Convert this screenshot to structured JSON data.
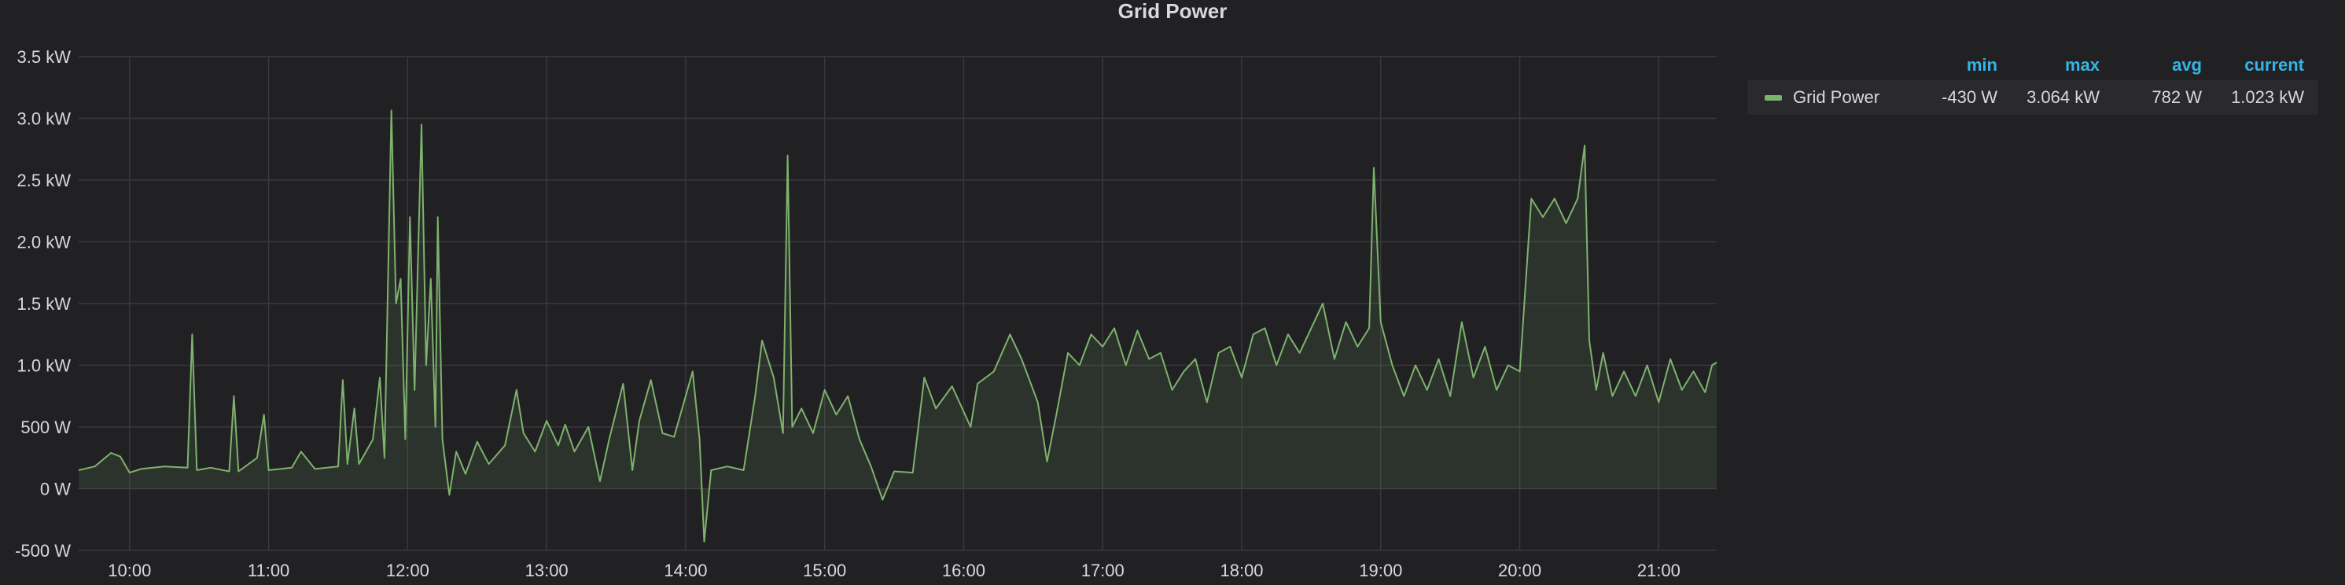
{
  "panel": {
    "title": "Grid Power"
  },
  "legend": {
    "headers": {
      "min": "min",
      "max": "max",
      "avg": "avg",
      "current": "current"
    },
    "series": [
      {
        "name": "Grid Power",
        "color": "#7eb26d",
        "min": "-430 W",
        "max": "3.064 kW",
        "avg": "782 W",
        "current": "1.023 kW"
      }
    ]
  },
  "chart_data": {
    "type": "area",
    "title": "Grid Power",
    "xlabel": "",
    "ylabel": "",
    "x_range": [
      "09:38",
      "21:25"
    ],
    "ylim": [
      -500,
      3500
    ],
    "y_ticks": [
      {
        "value": -500,
        "label": "-500 W"
      },
      {
        "value": 0,
        "label": "0 W"
      },
      {
        "value": 500,
        "label": "500 W"
      },
      {
        "value": 1000,
        "label": "1.0 kW"
      },
      {
        "value": 1500,
        "label": "1.5 kW"
      },
      {
        "value": 2000,
        "label": "2.0 kW"
      },
      {
        "value": 2500,
        "label": "2.5 kW"
      },
      {
        "value": 3000,
        "label": "3.0 kW"
      },
      {
        "value": 3500,
        "label": "3.5 kW"
      }
    ],
    "x_ticks": [
      "10:00",
      "11:00",
      "12:00",
      "13:00",
      "14:00",
      "15:00",
      "16:00",
      "17:00",
      "18:00",
      "19:00",
      "20:00",
      "21:00"
    ],
    "grid": true,
    "legend_position": "right",
    "series": [
      {
        "name": "Grid Power",
        "color": "#7eb26d",
        "points": [
          [
            "09:38",
            150
          ],
          [
            "09:45",
            180
          ],
          [
            "09:52",
            290
          ],
          [
            "09:56",
            260
          ],
          [
            "10:00",
            130
          ],
          [
            "10:05",
            160
          ],
          [
            "10:15",
            180
          ],
          [
            "10:25",
            170
          ],
          [
            "10:27",
            1250
          ],
          [
            "10:29",
            150
          ],
          [
            "10:35",
            170
          ],
          [
            "10:43",
            140
          ],
          [
            "10:45",
            750
          ],
          [
            "10:47",
            140
          ],
          [
            "10:55",
            250
          ],
          [
            "10:58",
            600
          ],
          [
            "11:00",
            150
          ],
          [
            "11:10",
            170
          ],
          [
            "11:14",
            300
          ],
          [
            "11:20",
            160
          ],
          [
            "11:30",
            180
          ],
          [
            "11:32",
            880
          ],
          [
            "11:34",
            200
          ],
          [
            "11:37",
            650
          ],
          [
            "11:39",
            200
          ],
          [
            "11:45",
            400
          ],
          [
            "11:48",
            900
          ],
          [
            "11:50",
            250
          ],
          [
            "11:53",
            3064
          ],
          [
            "11:55",
            1500
          ],
          [
            "11:57",
            1700
          ],
          [
            "11:59",
            400
          ],
          [
            "12:01",
            2200
          ],
          [
            "12:03",
            800
          ],
          [
            "12:06",
            2950
          ],
          [
            "12:08",
            1000
          ],
          [
            "12:10",
            1700
          ],
          [
            "12:12",
            500
          ],
          [
            "12:13",
            2200
          ],
          [
            "12:15",
            400
          ],
          [
            "12:18",
            -50
          ],
          [
            "12:21",
            300
          ],
          [
            "12:25",
            120
          ],
          [
            "12:30",
            380
          ],
          [
            "12:35",
            200
          ],
          [
            "12:42",
            350
          ],
          [
            "12:47",
            800
          ],
          [
            "12:50",
            450
          ],
          [
            "12:55",
            300
          ],
          [
            "13:00",
            550
          ],
          [
            "13:05",
            350
          ],
          [
            "13:08",
            520
          ],
          [
            "13:12",
            300
          ],
          [
            "13:18",
            500
          ],
          [
            "13:23",
            60
          ],
          [
            "13:27",
            400
          ],
          [
            "13:33",
            850
          ],
          [
            "13:37",
            150
          ],
          [
            "13:40",
            550
          ],
          [
            "13:45",
            880
          ],
          [
            "13:50",
            450
          ],
          [
            "13:55",
            420
          ],
          [
            "14:00",
            750
          ],
          [
            "14:03",
            950
          ],
          [
            "14:06",
            400
          ],
          [
            "14:08",
            -430
          ],
          [
            "14:11",
            150
          ],
          [
            "14:18",
            180
          ],
          [
            "14:25",
            150
          ],
          [
            "14:30",
            750
          ],
          [
            "14:33",
            1200
          ],
          [
            "14:38",
            900
          ],
          [
            "14:42",
            450
          ],
          [
            "14:44",
            2700
          ],
          [
            "14:46",
            500
          ],
          [
            "14:50",
            650
          ],
          [
            "14:55",
            450
          ],
          [
            "15:00",
            800
          ],
          [
            "15:05",
            600
          ],
          [
            "15:10",
            750
          ],
          [
            "15:15",
            400
          ],
          [
            "15:20",
            180
          ],
          [
            "15:25",
            -90
          ],
          [
            "15:30",
            140
          ],
          [
            "15:38",
            130
          ],
          [
            "15:43",
            900
          ],
          [
            "15:48",
            650
          ],
          [
            "15:55",
            830
          ],
          [
            "16:03",
            500
          ],
          [
            "16:06",
            850
          ],
          [
            "16:13",
            950
          ],
          [
            "16:20",
            1250
          ],
          [
            "16:25",
            1050
          ],
          [
            "16:32",
            700
          ],
          [
            "16:36",
            220
          ],
          [
            "16:40",
            600
          ],
          [
            "16:45",
            1100
          ],
          [
            "16:50",
            1000
          ],
          [
            "16:55",
            1250
          ],
          [
            "17:00",
            1150
          ],
          [
            "17:05",
            1300
          ],
          [
            "17:10",
            1000
          ],
          [
            "17:15",
            1280
          ],
          [
            "17:20",
            1050
          ],
          [
            "17:25",
            1100
          ],
          [
            "17:30",
            800
          ],
          [
            "17:35",
            950
          ],
          [
            "17:40",
            1050
          ],
          [
            "17:45",
            700
          ],
          [
            "17:50",
            1100
          ],
          [
            "17:55",
            1150
          ],
          [
            "18:00",
            900
          ],
          [
            "18:05",
            1250
          ],
          [
            "18:10",
            1300
          ],
          [
            "18:15",
            1000
          ],
          [
            "18:20",
            1250
          ],
          [
            "18:25",
            1100
          ],
          [
            "18:30",
            1300
          ],
          [
            "18:35",
            1500
          ],
          [
            "18:40",
            1050
          ],
          [
            "18:45",
            1350
          ],
          [
            "18:50",
            1150
          ],
          [
            "18:55",
            1300
          ],
          [
            "18:57",
            2600
          ],
          [
            "19:00",
            1350
          ],
          [
            "19:05",
            1000
          ],
          [
            "19:10",
            750
          ],
          [
            "19:15",
            1000
          ],
          [
            "19:20",
            800
          ],
          [
            "19:25",
            1050
          ],
          [
            "19:30",
            750
          ],
          [
            "19:35",
            1350
          ],
          [
            "19:40",
            900
          ],
          [
            "19:45",
            1150
          ],
          [
            "19:50",
            800
          ],
          [
            "19:55",
            1000
          ],
          [
            "20:00",
            950
          ],
          [
            "20:05",
            2350
          ],
          [
            "20:10",
            2200
          ],
          [
            "20:15",
            2350
          ],
          [
            "20:20",
            2150
          ],
          [
            "20:25",
            2350
          ],
          [
            "20:28",
            2780
          ],
          [
            "20:30",
            1200
          ],
          [
            "20:33",
            800
          ],
          [
            "20:36",
            1100
          ],
          [
            "20:40",
            750
          ],
          [
            "20:45",
            950
          ],
          [
            "20:50",
            750
          ],
          [
            "20:55",
            1000
          ],
          [
            "21:00",
            700
          ],
          [
            "21:05",
            1050
          ],
          [
            "21:10",
            800
          ],
          [
            "21:15",
            950
          ],
          [
            "21:20",
            780
          ],
          [
            "21:23",
            1000
          ],
          [
            "21:25",
            1023
          ]
        ]
      }
    ]
  }
}
